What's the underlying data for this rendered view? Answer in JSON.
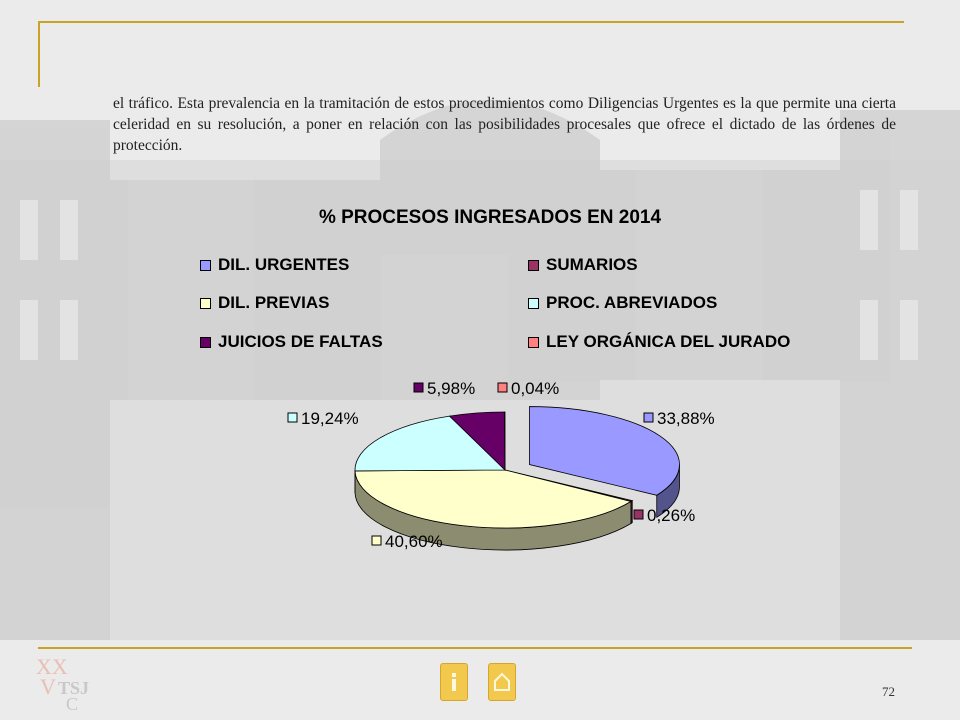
{
  "document": {
    "paragraph": "el tráfico. Esta prevalencia en la tramitación de estos procedimientos como Diligencias Urgentes es la que permite una cierta celeridad en su resolución, a poner en relación con las posibilidades procesales que ofrece el dictado de las órdenes de protección.",
    "page_number": "72",
    "logo_text": "TSJ",
    "accent_color": "#c9a227"
  },
  "navigation": {
    "prev_icon": "info-icon",
    "home_icon": "home-icon"
  },
  "chart_data": {
    "type": "pie",
    "title": "% PROCESOS INGRESADOS EN 2014",
    "legend_position": "top",
    "series": [
      {
        "name": "DIL. URGENTES",
        "value": 33.88,
        "label": "33,88%",
        "color": "#9999ff"
      },
      {
        "name": "SUMARIOS",
        "value": 0.26,
        "label": "0,26%",
        "color": "#993366"
      },
      {
        "name": "DIL. PREVIAS",
        "value": 40.6,
        "label": "40,60%",
        "color": "#ffffcc"
      },
      {
        "name": "PROC. ABREVIADOS",
        "value": 19.24,
        "label": "19,24%",
        "color": "#ccffff"
      },
      {
        "name": "JUICIOS DE FALTAS",
        "value": 5.98,
        "label": "5,98%",
        "color": "#660066"
      },
      {
        "name": "LEY ORGÁNICA DEL JURADO",
        "value": 0.04,
        "label": "0,04%",
        "color": "#ff8080"
      }
    ]
  }
}
